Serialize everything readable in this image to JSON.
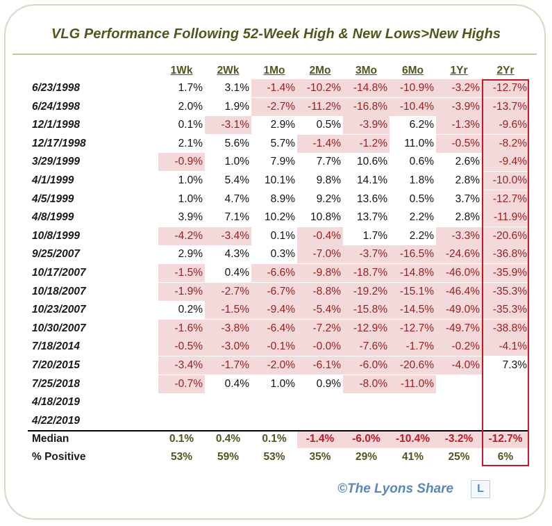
{
  "title": "VLG Performance Following 52-Week High & New Lows>New Highs",
  "brand": {
    "text": "©The Lyons Share",
    "logo_letter": "L"
  },
  "colors": {
    "negative_fill": "#f4d9da",
    "negative_text": "#9c1c1c",
    "header_text": "#4a5a1e",
    "highlight_box": "#c0192a",
    "brand": "#5b87b8"
  },
  "chart_data": {
    "type": "table",
    "title": "VLG Performance Following 52-Week High & New Lows>New Highs",
    "columns": [
      "1Wk",
      "2Wk",
      "1Mo",
      "2Mo",
      "3Mo",
      "6Mo",
      "1Yr",
      "2Yr"
    ],
    "highlighted_column": "2Yr",
    "rows": [
      {
        "date": "6/23/1998",
        "values": [
          "1.7%",
          "3.1%",
          "-1.4%",
          "-10.2%",
          "-14.8%",
          "-10.9%",
          "-3.2%",
          "-12.7%"
        ]
      },
      {
        "date": "6/24/1998",
        "values": [
          "2.0%",
          "1.9%",
          "-2.7%",
          "-11.2%",
          "-16.8%",
          "-10.4%",
          "-3.9%",
          "-13.7%"
        ]
      },
      {
        "date": "12/1/1998",
        "values": [
          "0.1%",
          "-3.1%",
          "2.9%",
          "0.5%",
          "-3.9%",
          "6.2%",
          "-1.3%",
          "-9.6%"
        ]
      },
      {
        "date": "12/17/1998",
        "values": [
          "2.1%",
          "5.6%",
          "5.7%",
          "-1.4%",
          "-1.2%",
          "11.0%",
          "-0.5%",
          "-8.2%"
        ]
      },
      {
        "date": "3/29/1999",
        "values": [
          "-0.9%",
          "1.0%",
          "7.9%",
          "7.7%",
          "10.6%",
          "0.6%",
          "2.6%",
          "-9.4%"
        ]
      },
      {
        "date": "4/1/1999",
        "values": [
          "1.0%",
          "5.4%",
          "10.1%",
          "9.8%",
          "14.1%",
          "1.8%",
          "2.8%",
          "-10.0%"
        ]
      },
      {
        "date": "4/5/1999",
        "values": [
          "1.0%",
          "4.7%",
          "8.9%",
          "9.2%",
          "13.6%",
          "0.5%",
          "3.7%",
          "-12.7%"
        ]
      },
      {
        "date": "4/8/1999",
        "values": [
          "3.9%",
          "7.1%",
          "10.2%",
          "10.8%",
          "13.7%",
          "2.2%",
          "2.8%",
          "-11.9%"
        ]
      },
      {
        "date": "10/8/1999",
        "values": [
          "-4.2%",
          "-3.4%",
          "0.1%",
          "-0.4%",
          "1.7%",
          "2.2%",
          "-3.3%",
          "-20.6%"
        ]
      },
      {
        "date": "9/25/2007",
        "values": [
          "2.9%",
          "4.3%",
          "0.3%",
          "-7.0%",
          "-3.7%",
          "-16.5%",
          "-24.6%",
          "-36.8%"
        ]
      },
      {
        "date": "10/17/2007",
        "values": [
          "-1.5%",
          "0.4%",
          "-6.6%",
          "-9.8%",
          "-18.7%",
          "-14.8%",
          "-46.0%",
          "-35.9%"
        ]
      },
      {
        "date": "10/18/2007",
        "values": [
          "-1.9%",
          "-2.7%",
          "-6.7%",
          "-8.8%",
          "-19.2%",
          "-15.1%",
          "-46.4%",
          "-35.3%"
        ]
      },
      {
        "date": "10/23/2007",
        "values": [
          "0.2%",
          "-1.5%",
          "-9.4%",
          "-5.4%",
          "-15.8%",
          "-14.5%",
          "-49.0%",
          "-35.3%"
        ]
      },
      {
        "date": "10/30/2007",
        "values": [
          "-1.6%",
          "-3.8%",
          "-6.4%",
          "-7.2%",
          "-12.9%",
          "-12.7%",
          "-49.7%",
          "-38.8%"
        ]
      },
      {
        "date": "7/18/2014",
        "values": [
          "-0.5%",
          "-3.0%",
          "-0.1%",
          "-0.0%",
          "-7.6%",
          "-1.7%",
          "-0.2%",
          "-4.1%"
        ]
      },
      {
        "date": "7/20/2015",
        "values": [
          "-3.4%",
          "-1.7%",
          "-2.0%",
          "-6.1%",
          "-6.0%",
          "-20.6%",
          "-4.0%",
          "7.3%"
        ]
      },
      {
        "date": "7/25/2018",
        "values": [
          "-0.7%",
          "0.4%",
          "1.0%",
          "0.9%",
          "-8.0%",
          "-11.0%",
          "",
          ""
        ]
      },
      {
        "date": "4/18/2019",
        "values": [
          "",
          "",
          "",
          "",
          "",
          "",
          "",
          ""
        ]
      },
      {
        "date": "4/22/2019",
        "values": [
          "",
          "",
          "",
          "",
          "",
          "",
          "",
          ""
        ]
      }
    ],
    "summary": [
      {
        "label": "Median",
        "values": [
          "0.1%",
          "0.4%",
          "0.1%",
          "-1.4%",
          "-6.0%",
          "-10.4%",
          "-3.2%",
          "-12.7%"
        ]
      },
      {
        "label": "% Positive",
        "values": [
          "53%",
          "59%",
          "53%",
          "35%",
          "29%",
          "41%",
          "25%",
          "6%"
        ]
      }
    ]
  }
}
